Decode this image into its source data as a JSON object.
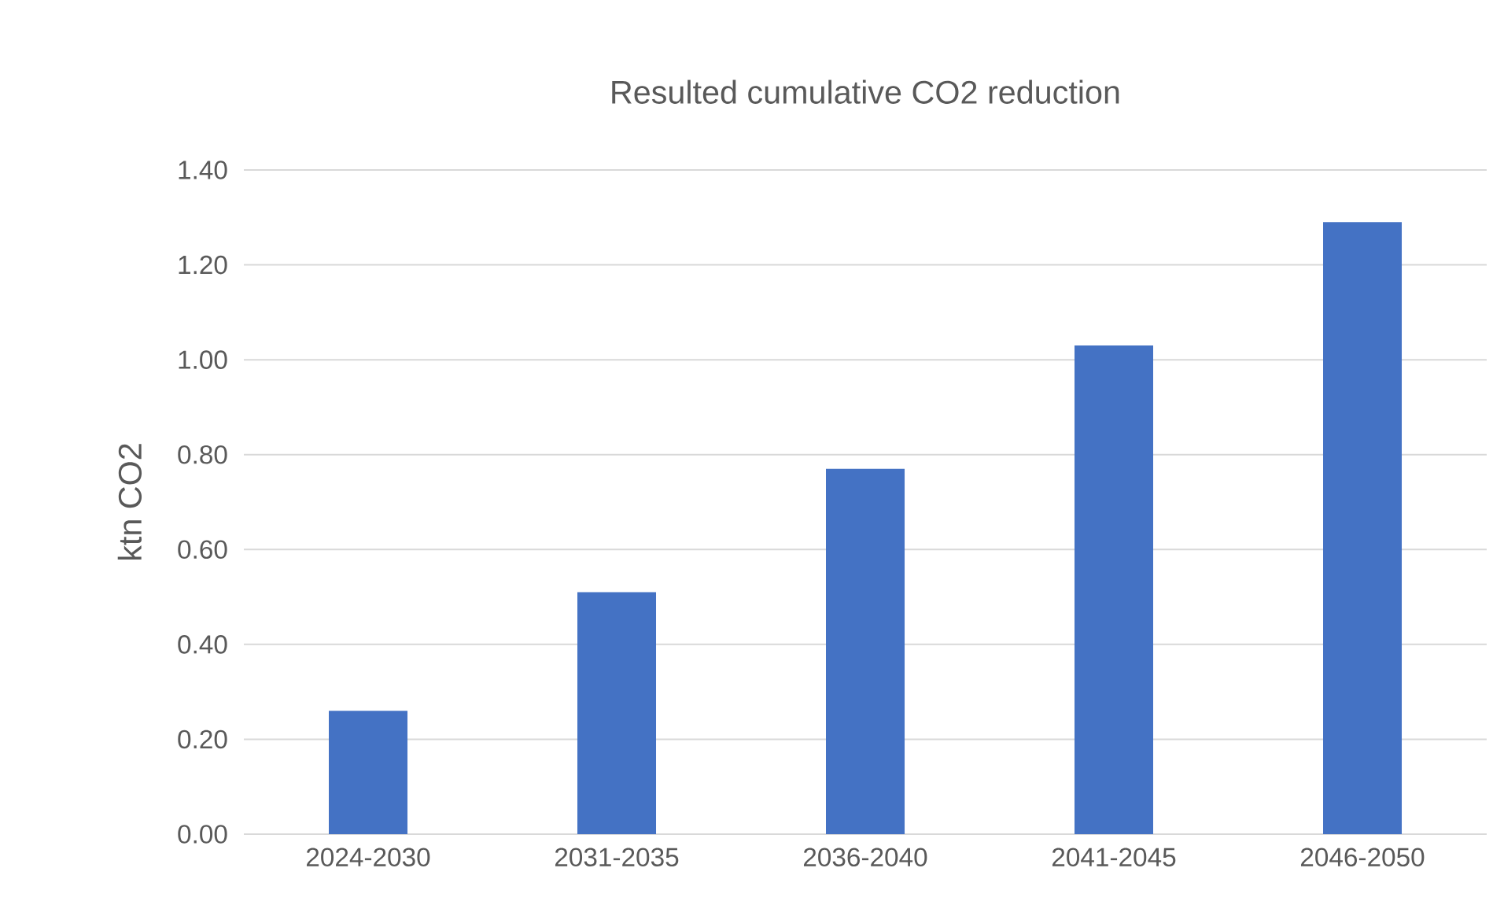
{
  "chart_data": {
    "type": "bar",
    "title": "Resulted cumulative CO2 reduction",
    "ylabel": "ktn CO2",
    "categories": [
      "2024-2030",
      "2031-2035",
      "2036-2040",
      "2041-2045",
      "2046-2050"
    ],
    "values": [
      0.26,
      0.51,
      0.77,
      1.03,
      1.29
    ],
    "color": "#4472c4",
    "ylim": [
      0,
      1.4
    ],
    "yticks": [
      {
        "value": 0,
        "label": "0.00"
      },
      {
        "value": 0.2,
        "label": "0.20"
      },
      {
        "value": 0.4,
        "label": "0.40"
      },
      {
        "value": 0.6,
        "label": "0.60"
      },
      {
        "value": 0.8,
        "label": "0.80"
      },
      {
        "value": 1.0,
        "label": "1.00"
      },
      {
        "value": 1.2,
        "label": "1.20"
      },
      {
        "value": 1.4,
        "label": "1.40"
      }
    ],
    "grid": "y"
  }
}
